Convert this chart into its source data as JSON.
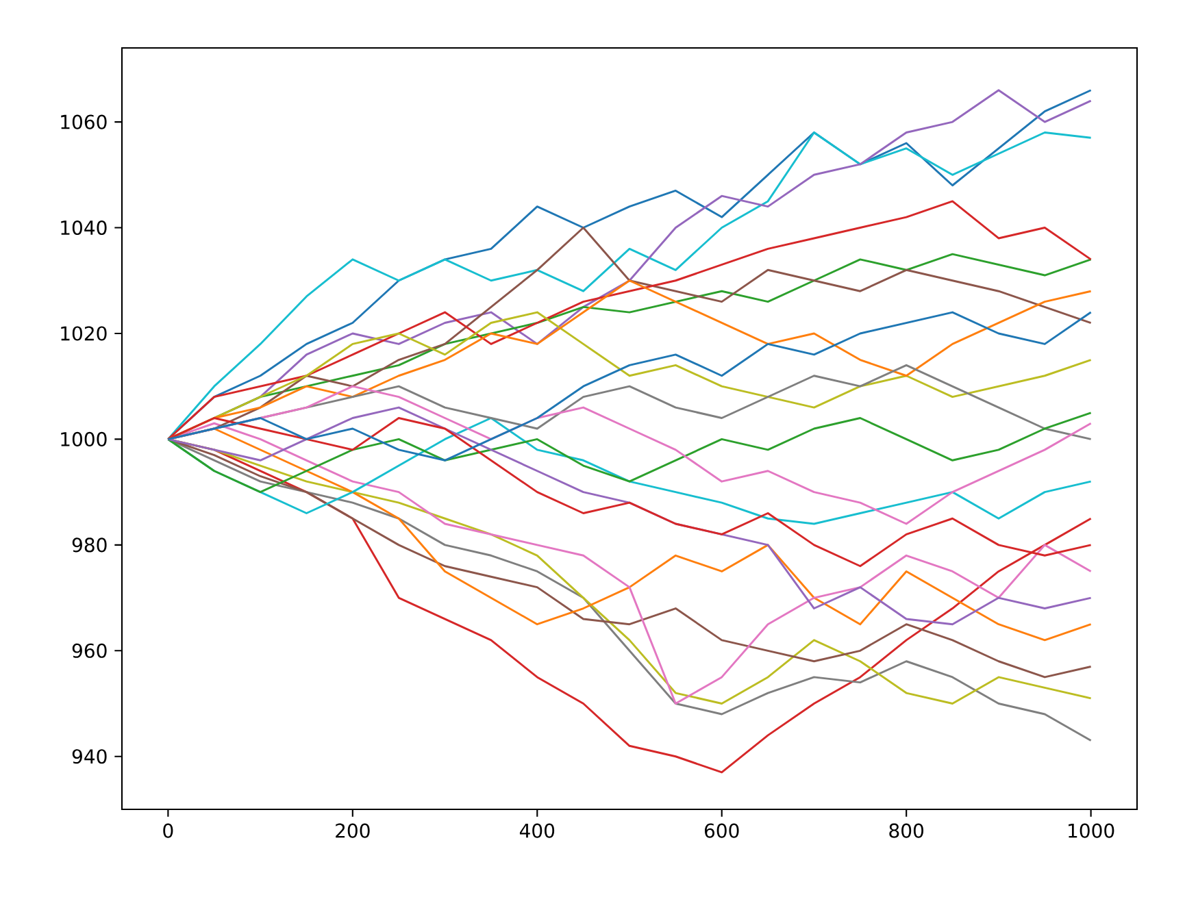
{
  "chart_data": {
    "type": "line",
    "xlim": [
      -50,
      1050
    ],
    "ylim": [
      930,
      1074
    ],
    "xticks": [
      0,
      200,
      400,
      600,
      800,
      1000
    ],
    "yticks": [
      940,
      960,
      980,
      1000,
      1020,
      1040,
      1060
    ],
    "grid": false,
    "marker": "none",
    "line_style": "solid",
    "x": [
      0,
      50,
      100,
      150,
      200,
      250,
      300,
      350,
      400,
      450,
      500,
      550,
      600,
      650,
      700,
      750,
      800,
      850,
      900,
      950,
      1000
    ],
    "series": [
      {
        "color": "#1f77b4",
        "values": [
          1000,
          1008,
          1012,
          1018,
          1022,
          1030,
          1034,
          1036,
          1044,
          1040,
          1044,
          1047,
          1042,
          1050,
          1058,
          1052,
          1056,
          1048,
          1055,
          1062,
          1066
        ]
      },
      {
        "color": "#17becf",
        "values": [
          1000,
          1010,
          1018,
          1027,
          1034,
          1030,
          1034,
          1030,
          1032,
          1028,
          1036,
          1032,
          1040,
          1045,
          1058,
          1052,
          1055,
          1050,
          1054,
          1058,
          1057
        ]
      },
      {
        "color": "#9467bd",
        "values": [
          1000,
          1004,
          1008,
          1016,
          1020,
          1018,
          1022,
          1024,
          1018,
          1025,
          1030,
          1040,
          1046,
          1044,
          1050,
          1052,
          1058,
          1060,
          1066,
          1060,
          1064
        ]
      },
      {
        "color": "#d62728",
        "values": [
          1000,
          998,
          994,
          990,
          985,
          970,
          966,
          962,
          955,
          950,
          942,
          940,
          937,
          944,
          950,
          955,
          962,
          968,
          975,
          980,
          985
        ]
      },
      {
        "color": "#7f7f7f",
        "values": [
          1000,
          996,
          992,
          990,
          988,
          985,
          980,
          978,
          975,
          970,
          960,
          950,
          948,
          952,
          955,
          954,
          958,
          955,
          950,
          948,
          943
        ]
      },
      {
        "color": "#bcbd22",
        "values": [
          1000,
          998,
          995,
          992,
          990,
          988,
          985,
          982,
          978,
          970,
          962,
          952,
          950,
          955,
          962,
          958,
          952,
          950,
          955,
          953,
          951
        ]
      },
      {
        "color": "#8c564b",
        "values": [
          1000,
          997,
          993,
          990,
          985,
          980,
          976,
          974,
          972,
          966,
          965,
          968,
          962,
          960,
          958,
          960,
          965,
          962,
          958,
          955,
          957
        ]
      },
      {
        "color": "#ff7f0e",
        "values": [
          1000,
          1002,
          998,
          994,
          990,
          985,
          975,
          970,
          965,
          968,
          972,
          978,
          975,
          980,
          970,
          965,
          975,
          970,
          965,
          962,
          965
        ]
      },
      {
        "color": "#e377c2",
        "values": [
          1000,
          1003,
          1000,
          996,
          992,
          990,
          984,
          982,
          980,
          978,
          972,
          950,
          955,
          965,
          970,
          972,
          978,
          975,
          970,
          980,
          975
        ]
      },
      {
        "color": "#2ca02c",
        "values": [
          1000,
          1004,
          1008,
          1010,
          1012,
          1014,
          1018,
          1020,
          1022,
          1025,
          1024,
          1026,
          1028,
          1026,
          1030,
          1034,
          1032,
          1035,
          1033,
          1031,
          1034
        ]
      },
      {
        "color": "#8c564b",
        "values": [
          1000,
          1002,
          1006,
          1012,
          1010,
          1015,
          1018,
          1025,
          1032,
          1040,
          1030,
          1028,
          1026,
          1032,
          1030,
          1028,
          1032,
          1030,
          1028,
          1025,
          1022
        ]
      },
      {
        "color": "#d62728",
        "values": [
          1000,
          1008,
          1010,
          1012,
          1016,
          1020,
          1024,
          1018,
          1022,
          1026,
          1028,
          1030,
          1033,
          1036,
          1038,
          1040,
          1042,
          1045,
          1038,
          1040,
          1034
        ]
      },
      {
        "color": "#bcbd22",
        "values": [
          1000,
          1004,
          1008,
          1012,
          1018,
          1020,
          1016,
          1022,
          1024,
          1018,
          1012,
          1014,
          1010,
          1008,
          1006,
          1010,
          1012,
          1008,
          1010,
          1012,
          1015
        ]
      },
      {
        "color": "#17becf",
        "values": [
          1000,
          994,
          990,
          986,
          990,
          995,
          1000,
          1004,
          998,
          996,
          992,
          990,
          988,
          985,
          984,
          986,
          988,
          990,
          985,
          990,
          992
        ]
      },
      {
        "color": "#ff7f0e",
        "values": [
          1000,
          1004,
          1006,
          1010,
          1008,
          1012,
          1015,
          1020,
          1018,
          1024,
          1030,
          1026,
          1022,
          1018,
          1020,
          1015,
          1012,
          1018,
          1022,
          1026,
          1028
        ]
      },
      {
        "color": "#7f7f7f",
        "values": [
          1000,
          1002,
          1004,
          1006,
          1008,
          1010,
          1006,
          1004,
          1002,
          1008,
          1010,
          1006,
          1004,
          1008,
          1012,
          1010,
          1014,
          1010,
          1006,
          1002,
          1000
        ]
      },
      {
        "color": "#2ca02c",
        "values": [
          1000,
          994,
          990,
          994,
          998,
          1000,
          996,
          998,
          1000,
          995,
          992,
          996,
          1000,
          998,
          1002,
          1004,
          1000,
          996,
          998,
          1002,
          1005
        ]
      },
      {
        "color": "#9467bd",
        "values": [
          1000,
          998,
          996,
          1000,
          1004,
          1006,
          1002,
          998,
          994,
          990,
          988,
          984,
          982,
          980,
          968,
          972,
          966,
          965,
          970,
          968,
          970
        ]
      },
      {
        "color": "#e377c2",
        "values": [
          1000,
          1002,
          1004,
          1006,
          1010,
          1008,
          1004,
          1000,
          1004,
          1006,
          1002,
          998,
          992,
          994,
          990,
          988,
          984,
          990,
          994,
          998,
          1003
        ]
      },
      {
        "color": "#d62728",
        "values": [
          1000,
          1004,
          1002,
          1000,
          998,
          1004,
          1002,
          996,
          990,
          986,
          988,
          984,
          982,
          986,
          980,
          976,
          982,
          985,
          980,
          978,
          980
        ]
      },
      {
        "color": "#1f77b4",
        "values": [
          1000,
          1002,
          1004,
          1000,
          1002,
          998,
          996,
          1000,
          1004,
          1010,
          1014,
          1016,
          1012,
          1018,
          1016,
          1020,
          1022,
          1024,
          1020,
          1018,
          1024
        ]
      }
    ]
  }
}
